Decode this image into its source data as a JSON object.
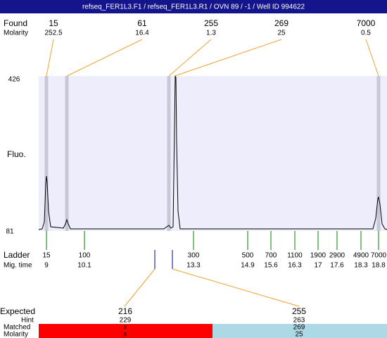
{
  "header": {
    "title": "refseq_FER1L3.F1 / refseq_FER1L3.R1 / OVN 89 / -1 / Well ID 994622"
  },
  "found": {
    "label": "Found",
    "molarity_label": "Molarity",
    "peaks": [
      {
        "size": 15,
        "molarity": 252.5
      },
      {
        "size": 61,
        "molarity": 16.4
      },
      {
        "size": 255,
        "molarity": 1.3
      },
      {
        "size": 269,
        "molarity": 25
      },
      {
        "size": 7000,
        "molarity": 0.5
      }
    ]
  },
  "axis": {
    "label": "Fluo.",
    "ticks": [
      426,
      81
    ]
  },
  "ladder": {
    "label": "Ladder",
    "time_label": "Mig. time",
    "sizes": [
      15,
      100,
      300,
      500,
      700,
      1100,
      1900,
      2900,
      4900,
      7000
    ],
    "times": [
      9,
      10.1,
      13.3,
      14.9,
      15.6,
      16.3,
      17,
      17.6,
      18.3,
      18.8
    ]
  },
  "expected": {
    "label": "Expected",
    "hint_label": "Hint",
    "matched_label": "Matched",
    "molarity_label": "Molarity",
    "items": [
      {
        "expected": 216,
        "hint": 229,
        "matched": "x",
        "molarity": "x"
      },
      {
        "expected": 255,
        "hint": 263,
        "matched": 269,
        "molarity": 25
      }
    ]
  }
}
